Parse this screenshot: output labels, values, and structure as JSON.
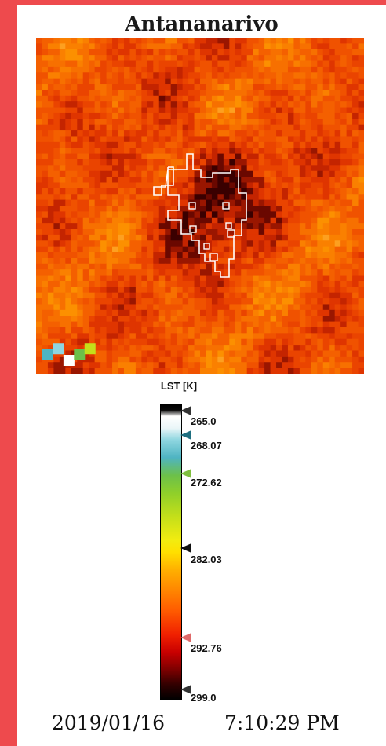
{
  "title": "Antananarivo",
  "colorbar": {
    "label": "LST [K]",
    "ticks": [
      {
        "label": "265.0",
        "color": "#333333",
        "fill": "#ffffff"
      },
      {
        "label": "268.07",
        "color": "#1f6f80",
        "fill": "#3aa0b8"
      },
      {
        "label": "272.62",
        "color": "#7fbf3f",
        "fill": "#9fd55a"
      },
      {
        "label": "282.03",
        "color": "#111111",
        "fill": "#f4e20a"
      },
      {
        "label": "292.76",
        "color": "#e06a6a",
        "fill": "#f29a9a"
      },
      {
        "label": "299.0",
        "color": "#333333",
        "fill": "#555555"
      }
    ]
  },
  "footer": {
    "date": "2019/01/16",
    "time": "7:10:29 PM"
  }
}
